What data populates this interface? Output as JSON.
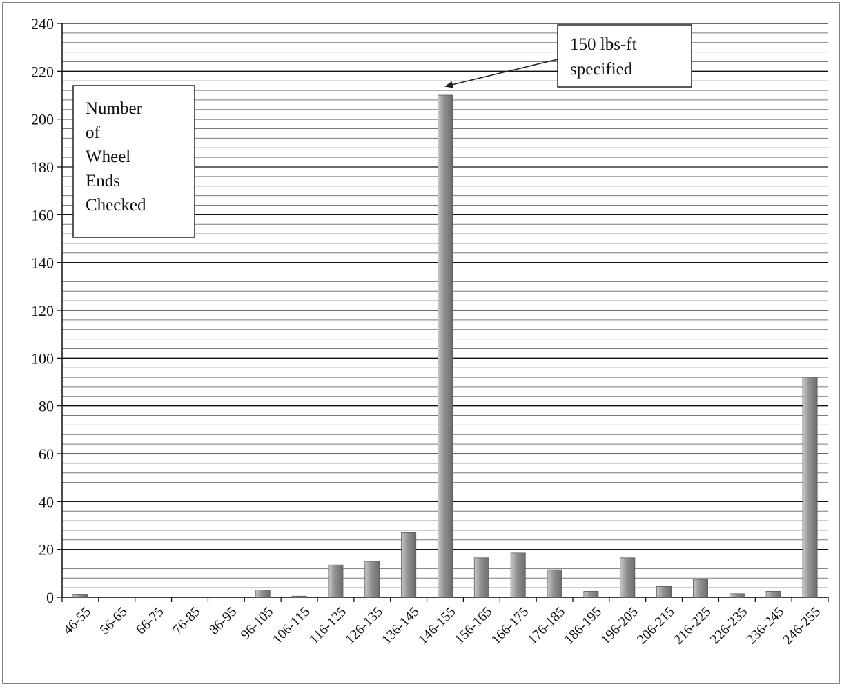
{
  "chart_data": {
    "type": "bar",
    "categories": [
      "46-55",
      "56-65",
      "66-75",
      "76-85",
      "86-95",
      "96-105",
      "106-115",
      "116-125",
      "126-135",
      "136-145",
      "146-155",
      "156-165",
      "166-175",
      "176-185",
      "186-195",
      "196-205",
      "206-215",
      "216-225",
      "226-235",
      "236-245",
      "246-255"
    ],
    "values": [
      1,
      0,
      0,
      0,
      0,
      3,
      0.5,
      13.5,
      15,
      27,
      210,
      16.5,
      18.5,
      11.5,
      2.5,
      16.5,
      4.5,
      7.5,
      1.5,
      2.5,
      92
    ],
    "title": "",
    "xlabel": "",
    "ylabel": "",
    "ylim": [
      0,
      240
    ],
    "yticks": [
      0,
      20,
      40,
      60,
      80,
      100,
      120,
      140,
      160,
      180,
      200,
      220,
      240
    ],
    "grid": true,
    "legend": "none",
    "bar_color": "#9a9a9a",
    "annotations": {
      "ylabel_box": [
        "Number",
        "of",
        "Wheel",
        "Ends",
        "Checked"
      ],
      "callout": [
        "150 lbs-ft",
        "specified"
      ]
    }
  }
}
